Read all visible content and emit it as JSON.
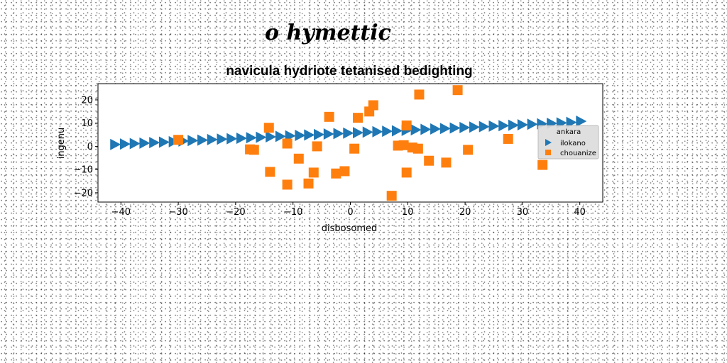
{
  "suptitle": "o hymettic",
  "chart_data": {
    "type": "scatter",
    "title": "navicula hydriote tetanised bedighting",
    "xlabel": "disbosomed",
    "ylabel": "ingenu",
    "xlim": [
      -44,
      44
    ],
    "ylim": [
      -24,
      27
    ],
    "xticks": [
      -40,
      -30,
      -20,
      -10,
      0,
      10,
      20,
      30,
      40
    ],
    "yticks": [
      -20,
      -10,
      0,
      10,
      20
    ],
    "xtick_labels": [
      "−40",
      "−30",
      "−20",
      "−10",
      "0",
      "10",
      "20",
      "30",
      "40"
    ],
    "ytick_labels": [
      "−20",
      "−10",
      "0",
      "10",
      "20"
    ],
    "grid": false,
    "legend": {
      "title": "ankara",
      "placement": "right"
    },
    "series": [
      {
        "name": "ilokano",
        "marker": "triangle-right",
        "color": "#1f77b4",
        "x": [
          -41.0,
          -39.3,
          -37.6,
          -35.9,
          -34.2,
          -32.5,
          -30.8,
          -29.1,
          -27.5,
          -25.8,
          -24.1,
          -22.4,
          -20.7,
          -19.0,
          -17.3,
          -15.6,
          -13.9,
          -12.2,
          -10.5,
          -8.8,
          -7.2,
          -5.5,
          -3.8,
          -2.1,
          -0.4,
          1.3,
          3.0,
          4.7,
          6.4,
          8.1,
          9.8,
          11.4,
          13.1,
          14.8,
          16.5,
          18.2,
          19.9,
          21.6,
          23.3,
          25.0,
          26.7,
          28.4,
          30.0,
          31.7,
          33.4,
          35.1,
          36.8,
          38.5,
          40.2
        ],
        "y": [
          0.8,
          1.0,
          1.2,
          1.4,
          1.6,
          1.8,
          2.0,
          2.3,
          2.5,
          2.7,
          2.9,
          3.1,
          3.3,
          3.5,
          3.7,
          3.9,
          4.1,
          4.3,
          4.5,
          4.7,
          4.9,
          5.1,
          5.3,
          5.5,
          5.7,
          5.9,
          6.1,
          6.3,
          6.5,
          6.7,
          6.9,
          7.1,
          7.3,
          7.5,
          7.7,
          7.9,
          8.1,
          8.3,
          8.5,
          8.7,
          8.9,
          9.1,
          9.3,
          9.5,
          9.7,
          9.9,
          10.1,
          10.3,
          10.8
        ]
      },
      {
        "name": "chouanize",
        "marker": "square",
        "color": "#ff7f0e",
        "x": [
          -30.0,
          -17.5,
          -16.8,
          -14.2,
          -14.0,
          -11.0,
          -11.0,
          -9.0,
          -7.3,
          -6.4,
          -5.8,
          -3.7,
          -2.5,
          -1.0,
          0.7,
          1.3,
          3.3,
          4.0,
          7.2,
          8.3,
          9.3,
          9.8,
          9.8,
          10.8,
          11.8,
          12.0,
          13.7,
          16.7,
          18.7,
          20.5,
          27.5,
          33.5
        ],
        "y": [
          2.8,
          -1.3,
          -1.5,
          8.0,
          -11.0,
          1.2,
          -16.5,
          -5.3,
          -16.0,
          -11.3,
          0.0,
          12.7,
          -11.7,
          -10.7,
          -1.0,
          12.3,
          15.0,
          17.7,
          -21.3,
          0.3,
          0.5,
          9.0,
          -11.3,
          -0.5,
          -1.0,
          22.3,
          -6.2,
          -7.0,
          24.2,
          -1.5,
          3.2,
          -8.0
        ]
      }
    ]
  }
}
